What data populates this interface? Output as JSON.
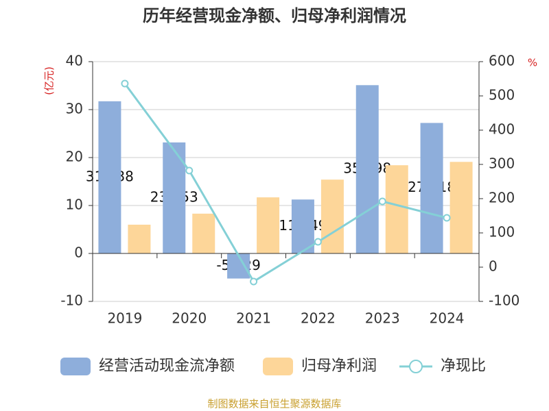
{
  "chart_data": {
    "type": "bar",
    "title": "历年经营现金净额、归母净利润情况",
    "y_label": "(亿元)",
    "y2_label": "%",
    "categories": [
      "2019",
      "2020",
      "2021",
      "2022",
      "2023",
      "2024"
    ],
    "series": [
      {
        "name": "经营活动现金流净额",
        "type": "bar",
        "color": "#8eaedb",
        "values": [
          31.738,
          23.153,
          -5.229,
          11.249,
          35.098,
          27.218
        ]
      },
      {
        "name": "归母净利润",
        "type": "bar",
        "color": "#fdd699",
        "values": [
          6.0,
          8.3,
          11.7,
          15.4,
          18.4,
          19.1
        ]
      },
      {
        "name": "净现比",
        "type": "line",
        "axis": "y2",
        "color": "#84d0d6",
        "values": [
          536,
          282,
          -42,
          74,
          192,
          144
        ]
      }
    ],
    "ylim": [
      -10,
      40
    ],
    "yticks": [
      -10,
      0,
      10,
      20,
      30,
      40
    ],
    "y2lim": [
      -100,
      600
    ],
    "y2ticks": [
      -100,
      0,
      100,
      200,
      300,
      400,
      500,
      600
    ],
    "grid": true,
    "legend": "bottom",
    "source": "制图数据来自恒生聚源数据库"
  }
}
